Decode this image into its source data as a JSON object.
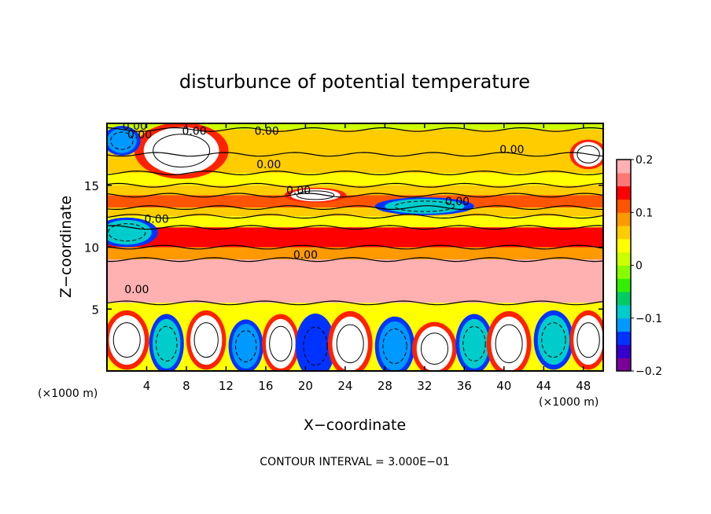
{
  "chart_data": {
    "type": "heatmap",
    "title": "disturbunce of potential temperature",
    "xlabel": "X−coordinate",
    "ylabel": "Z−coordinate",
    "x_unit_label": "(×1000 m)",
    "z_unit_label": "(×1000 m)",
    "footnote": "CONTOUR INTERVAL = 3.000E−01",
    "xlim": [
      0,
      50
    ],
    "ylim": [
      0,
      20
    ],
    "x_ticks": [
      4,
      8,
      12,
      16,
      20,
      24,
      28,
      32,
      36,
      40,
      44,
      48
    ],
    "y_ticks": [
      5,
      10,
      15
    ],
    "colorbar": {
      "min": -0.2,
      "max": 0.2,
      "tick_values": [
        0.2,
        0.1,
        0,
        -0.1,
        -0.2
      ],
      "tick_labels": [
        "0.2",
        "0.1",
        "0",
        "−0.1",
        "−0.2"
      ],
      "colors": [
        "#7a0099",
        "#3300cc",
        "#0033ff",
        "#0099ff",
        "#00cccc",
        "#00cc66",
        "#33ee00",
        "#88ff00",
        "#ccff00",
        "#ffff00",
        "#ffcc00",
        "#ff9900",
        "#ff5500",
        "#ff0000",
        "#ff7777",
        "#ffb0b0"
      ]
    },
    "contour_labels": [
      {
        "text": "0.00",
        "x": 2.8,
        "z": 19.8
      },
      {
        "text": "0.00",
        "x": 3.3,
        "z": 19.1
      },
      {
        "text": "0.00",
        "x": 8.8,
        "z": 19.4
      },
      {
        "text": "0.00",
        "x": 16.1,
        "z": 19.4
      },
      {
        "text": "0.00",
        "x": 40.8,
        "z": 17.9
      },
      {
        "text": "0.00",
        "x": 16.3,
        "z": 16.7
      },
      {
        "text": "0.00",
        "x": 19.3,
        "z": 14.6
      },
      {
        "text": "0.00",
        "x": 35.3,
        "z": 13.7
      },
      {
        "text": "0.00",
        "x": 5.0,
        "z": 12.3
      },
      {
        "text": "0.00",
        "x": 20.0,
        "z": 9.4
      },
      {
        "text": "0.00",
        "x": 3.0,
        "z": 6.6
      }
    ],
    "field_bands": [
      {
        "z": [
          19.5,
          20.0
        ],
        "value": 0.02
      },
      {
        "z": [
          17.5,
          19.5
        ],
        "value": 0.05
      },
      {
        "z": [
          16.0,
          17.5
        ],
        "value": 0.07
      },
      {
        "z": [
          15.0,
          16.0
        ],
        "value": 0.03
      },
      {
        "z": [
          14.2,
          15.0
        ],
        "value": 0.05
      },
      {
        "z": [
          13.2,
          14.2
        ],
        "value": 0.1
      },
      {
        "z": [
          12.5,
          13.2
        ],
        "value": 0.06
      },
      {
        "z": [
          11.6,
          12.5
        ],
        "value": 0.04
      },
      {
        "z": [
          10.0,
          11.6
        ],
        "value": 0.15
      },
      {
        "z": [
          9.0,
          10.0
        ],
        "value": 0.08
      },
      {
        "z": [
          5.5,
          9.0
        ],
        "value": 0.2
      },
      {
        "z": [
          0.0,
          5.5
        ],
        "value": 0.04
      }
    ],
    "blobs": [
      {
        "x": 7.5,
        "z": 17.8,
        "rx": 3.8,
        "rz": 1.9,
        "value": 0.25
      },
      {
        "x": 1.5,
        "z": 18.6,
        "rx": 1.5,
        "rz": 1.0,
        "value": -0.12
      },
      {
        "x": 2.0,
        "z": 11.2,
        "rx": 2.5,
        "rz": 1.0,
        "value": -0.08
      },
      {
        "x": 48.5,
        "z": 17.5,
        "rx": 1.5,
        "rz": 1.0,
        "value": 0.25
      },
      {
        "x": 32.0,
        "z": 13.3,
        "rx": 4.0,
        "rz": 0.6,
        "value": -0.08
      },
      {
        "x": 21.0,
        "z": 14.2,
        "rx": 2.5,
        "rz": 0.5,
        "value": 0.25
      },
      {
        "x": 2.0,
        "z": 2.5,
        "rx": 1.8,
        "rz": 2.0,
        "value": 0.25
      },
      {
        "x": 6.0,
        "z": 2.2,
        "rx": 1.4,
        "rz": 2.0,
        "value": -0.1
      },
      {
        "x": 10.0,
        "z": 2.5,
        "rx": 1.6,
        "rz": 2.0,
        "value": 0.25
      },
      {
        "x": 14.0,
        "z": 2.0,
        "rx": 1.4,
        "rz": 1.8,
        "value": -0.12
      },
      {
        "x": 17.5,
        "z": 2.2,
        "rx": 1.5,
        "rz": 2.0,
        "value": 0.25
      },
      {
        "x": 21.0,
        "z": 2.0,
        "rx": 1.6,
        "rz": 2.2,
        "value": -0.15
      },
      {
        "x": 24.5,
        "z": 2.2,
        "rx": 1.8,
        "rz": 2.2,
        "value": 0.25
      },
      {
        "x": 29.0,
        "z": 2.0,
        "rx": 1.6,
        "rz": 2.0,
        "value": -0.12
      },
      {
        "x": 33.0,
        "z": 1.8,
        "rx": 1.8,
        "rz": 1.8,
        "value": 0.25
      },
      {
        "x": 37.0,
        "z": 2.2,
        "rx": 1.5,
        "rz": 2.0,
        "value": -0.1
      },
      {
        "x": 40.5,
        "z": 2.2,
        "rx": 1.8,
        "rz": 2.2,
        "value": 0.25
      },
      {
        "x": 45.0,
        "z": 2.5,
        "rx": 1.6,
        "rz": 2.0,
        "value": -0.08
      },
      {
        "x": 48.5,
        "z": 2.5,
        "rx": 1.5,
        "rz": 2.0,
        "value": 0.25
      }
    ]
  }
}
